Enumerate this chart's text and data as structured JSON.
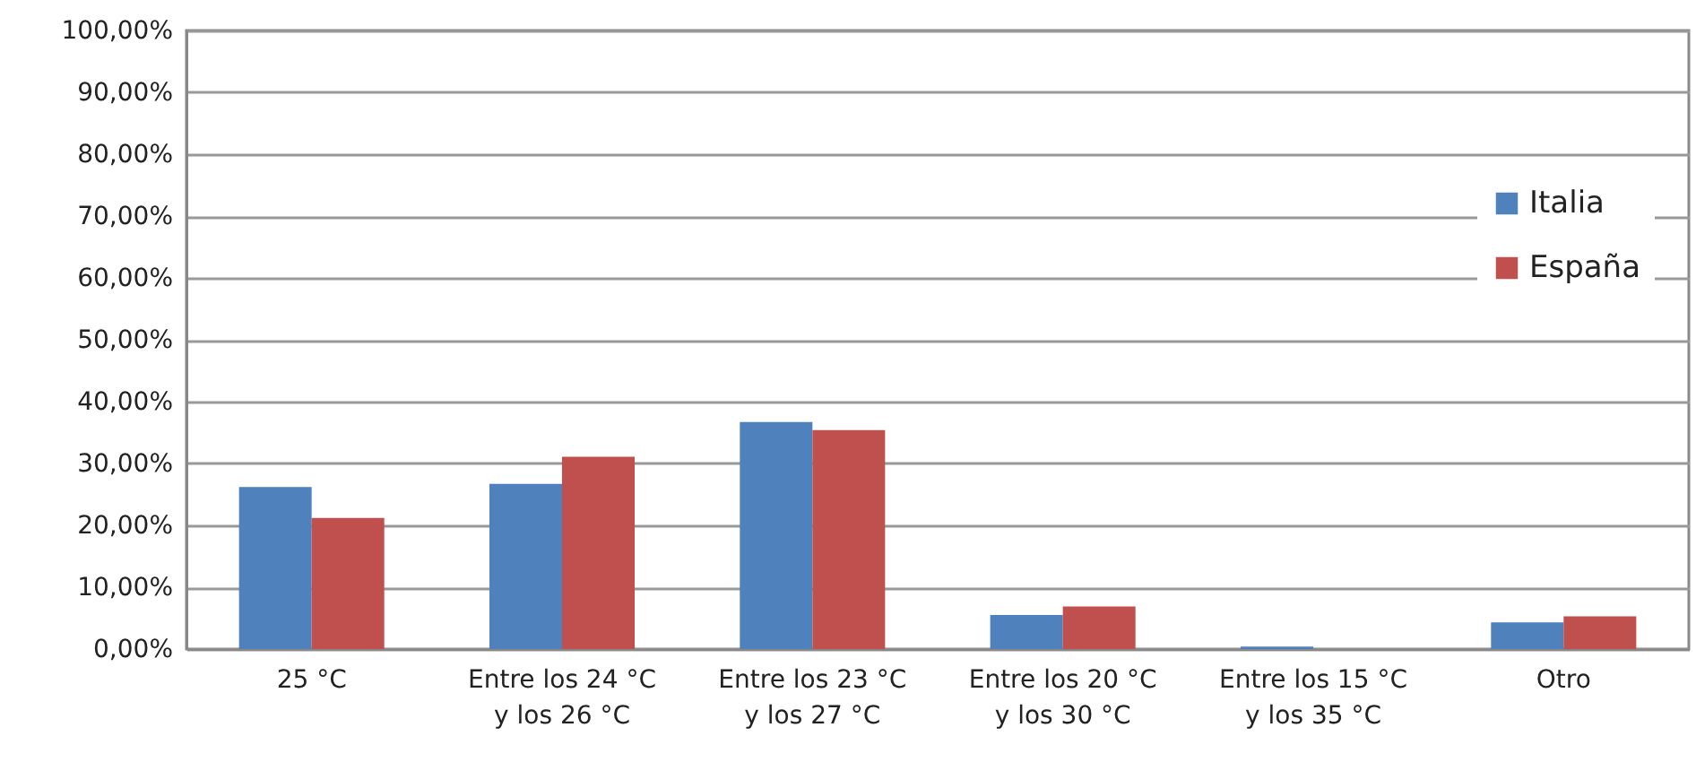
{
  "chart_data": {
    "type": "bar",
    "categories": [
      "25 °C",
      "Entre los 24 °C\ny los 26 °C",
      "Entre los 23 °C\ny los 27 °C",
      "Entre los 20 °C\ny los 30 °C",
      "Entre los 15 °C\ny los 35 °C",
      "Otro"
    ],
    "series": [
      {
        "name": "Italia",
        "color": "#4f81bd",
        "values": [
          26.2,
          26.7,
          36.7,
          5.5,
          0.4,
          4.3
        ]
      },
      {
        "name": "España",
        "color": "#c0504d",
        "values": [
          21.2,
          31.1,
          35.4,
          6.9,
          0,
          5.3
        ]
      }
    ],
    "ylim": [
      0,
      100
    ],
    "yticks": [
      {
        "value": 0,
        "label": "0,00%"
      },
      {
        "value": 10,
        "label": "10,00%"
      },
      {
        "value": 20,
        "label": "20,00%"
      },
      {
        "value": 30,
        "label": "30,00%"
      },
      {
        "value": 40,
        "label": "40,00%"
      },
      {
        "value": 50,
        "label": "50,00%"
      },
      {
        "value": 60,
        "label": "60,00%"
      },
      {
        "value": 70,
        "label": "70,00%"
      },
      {
        "value": 80,
        "label": "80,00%"
      },
      {
        "value": 90,
        "label": "90,00%"
      },
      {
        "value": 100,
        "label": "100,00%"
      }
    ],
    "grid": "y",
    "legend": "right"
  }
}
